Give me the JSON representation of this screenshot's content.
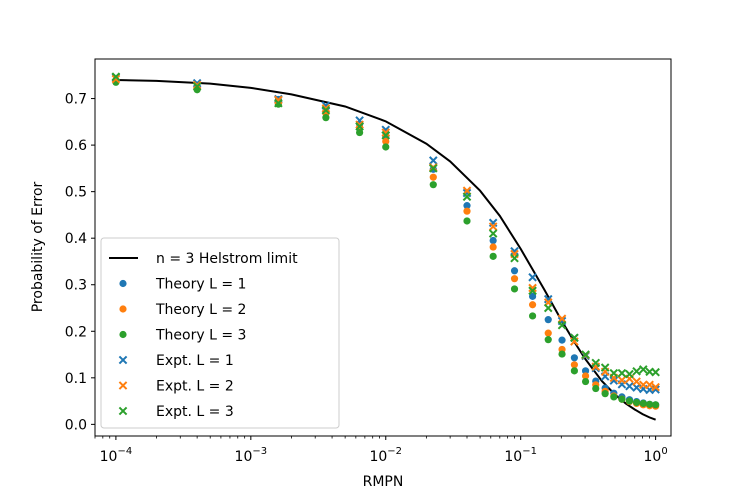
{
  "chart_data": {
    "type": "scatter",
    "xlabel": "RMPN",
    "ylabel": "Probability of Error",
    "xscale": "log",
    "xlim": [
      7e-05,
      1.3
    ],
    "ylim": [
      -0.025,
      0.785
    ],
    "x_ticks": [
      {
        "value": 0.0001,
        "base": "10",
        "exp": "−4"
      },
      {
        "value": 0.001,
        "base": "10",
        "exp": "−3"
      },
      {
        "value": 0.01,
        "base": "10",
        "exp": "−2"
      },
      {
        "value": 0.1,
        "base": "10",
        "exp": "−1"
      },
      {
        "value": 1,
        "base": "10",
        "exp": "0"
      }
    ],
    "y_ticks": [
      {
        "value": 0.0,
        "label": "0.0"
      },
      {
        "value": 0.1,
        "label": "0.1"
      },
      {
        "value": 0.2,
        "label": "0.2"
      },
      {
        "value": 0.3,
        "label": "0.3"
      },
      {
        "value": 0.4,
        "label": "0.4"
      },
      {
        "value": 0.5,
        "label": "0.5"
      },
      {
        "value": 0.6,
        "label": "0.6"
      },
      {
        "value": 0.7,
        "label": "0.7"
      }
    ],
    "grid": false,
    "legend_position": "lower-left",
    "x": [
      0.0001,
      0.0004,
      0.0016,
      0.0036,
      0.0064,
      0.01,
      0.0225,
      0.04,
      0.0625,
      0.09,
      0.1225,
      0.16,
      0.2025,
      0.25,
      0.3025,
      0.36,
      0.4225,
      0.49,
      0.5625,
      0.64,
      0.7225,
      0.81,
      0.9025,
      1.0
    ],
    "series": [
      {
        "name": "n = 3 Helstrom limit",
        "type": "line",
        "color": "#000000",
        "x": [
          0.0001,
          0.0002,
          0.0005,
          0.001,
          0.002,
          0.005,
          0.01,
          0.02,
          0.03,
          0.05,
          0.07,
          0.1,
          0.15,
          0.2,
          0.25,
          0.3,
          0.4,
          0.5,
          0.6,
          0.7,
          0.8,
          0.9,
          1.0
        ],
        "values": [
          0.74,
          0.738,
          0.732,
          0.723,
          0.709,
          0.683,
          0.651,
          0.603,
          0.565,
          0.502,
          0.448,
          0.377,
          0.289,
          0.224,
          0.177,
          0.141,
          0.093,
          0.064,
          0.045,
          0.032,
          0.022,
          0.015,
          0.01
        ]
      },
      {
        "name": "Theory L = 1",
        "marker": "circle",
        "color": "#1f77b4",
        "values": [
          0.737,
          0.725,
          0.698,
          0.672,
          0.645,
          0.618,
          0.548,
          0.47,
          0.395,
          0.33,
          0.275,
          0.225,
          0.181,
          0.143,
          0.115,
          0.093,
          0.078,
          0.067,
          0.059,
          0.053,
          0.049,
          0.046,
          0.043,
          0.042
        ]
      },
      {
        "name": "Theory L = 2",
        "marker": "circle",
        "color": "#ff7f0e",
        "values": [
          0.736,
          0.722,
          0.694,
          0.668,
          0.638,
          0.608,
          0.531,
          0.458,
          0.381,
          0.313,
          0.257,
          0.196,
          0.161,
          0.128,
          0.104,
          0.085,
          0.071,
          0.061,
          0.054,
          0.049,
          0.045,
          0.042,
          0.04,
          0.039
        ]
      },
      {
        "name": "Theory L = 3",
        "marker": "circle",
        "color": "#2ca02c",
        "values": [
          0.735,
          0.719,
          0.688,
          0.659,
          0.627,
          0.596,
          0.515,
          0.437,
          0.361,
          0.291,
          0.233,
          0.182,
          0.151,
          0.115,
          0.092,
          0.077,
          0.066,
          0.059,
          0.054,
          0.05,
          0.047,
          0.045,
          0.043,
          0.042
        ]
      },
      {
        "name": "Expt. L = 1",
        "marker": "x",
        "color": "#1f77b4",
        "values": [
          0.745,
          0.733,
          0.699,
          0.685,
          0.653,
          0.633,
          0.567,
          0.497,
          0.433,
          0.372,
          0.316,
          0.269,
          0.222,
          0.186,
          0.147,
          0.121,
          0.103,
          0.094,
          0.086,
          0.082,
          0.079,
          0.076,
          0.074,
          0.075
        ]
      },
      {
        "name": "Expt. L = 2",
        "marker": "x",
        "color": "#ff7f0e",
        "values": [
          0.742,
          0.729,
          0.697,
          0.679,
          0.644,
          0.627,
          0.552,
          0.502,
          0.425,
          0.366,
          0.293,
          0.262,
          0.227,
          0.178,
          0.149,
          0.124,
          0.113,
          0.1,
          0.095,
          0.098,
          0.092,
          0.085,
          0.085,
          0.08
        ]
      },
      {
        "name": "Expt. L = 3",
        "marker": "x",
        "color": "#2ca02c",
        "values": [
          0.747,
          0.726,
          0.69,
          0.675,
          0.64,
          0.621,
          0.55,
          0.489,
          0.41,
          0.357,
          0.287,
          0.25,
          0.213,
          0.186,
          0.15,
          0.132,
          0.122,
          0.11,
          0.11,
          0.108,
          0.114,
          0.118,
          0.113,
          0.112
        ]
      }
    ]
  }
}
